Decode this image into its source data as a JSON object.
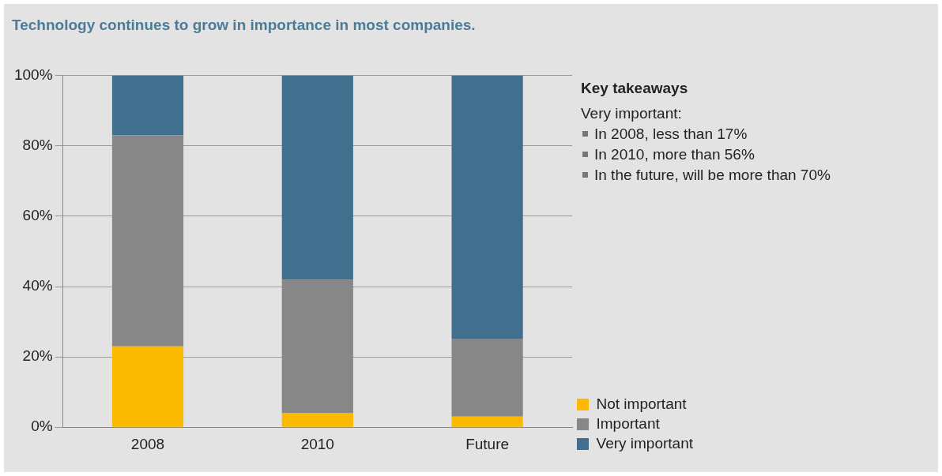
{
  "chart_data": {
    "type": "bar",
    "title": "Technology continues to grow in importance in most companies.",
    "categories": [
      "2008",
      "2010",
      "Future"
    ],
    "stacked": true,
    "series": [
      {
        "name": "Not important",
        "color": "#fbb900",
        "values": [
          23,
          4,
          3
        ]
      },
      {
        "name": "Important",
        "color": "#878787",
        "values": [
          60,
          38,
          22
        ]
      },
      {
        "name": "Very important",
        "color": "#41708f",
        "values": [
          17,
          58,
          75
        ]
      }
    ],
    "ylim": [
      0,
      100
    ],
    "yticks": [
      {
        "value": 0,
        "label": "0%"
      },
      {
        "value": 20,
        "label": "20%"
      },
      {
        "value": 40,
        "label": "40%"
      },
      {
        "value": 60,
        "label": "60%"
      },
      {
        "value": 80,
        "label": "80%"
      },
      {
        "value": 100,
        "label": "100%"
      }
    ],
    "grid": "y",
    "legend": "bottom right",
    "annotations": [
      "Key takeaways",
      "Very important:",
      "In 2008, less than 17%",
      "In 2010, more than 56%",
      "In the future, will be more than 70%"
    ]
  }
}
